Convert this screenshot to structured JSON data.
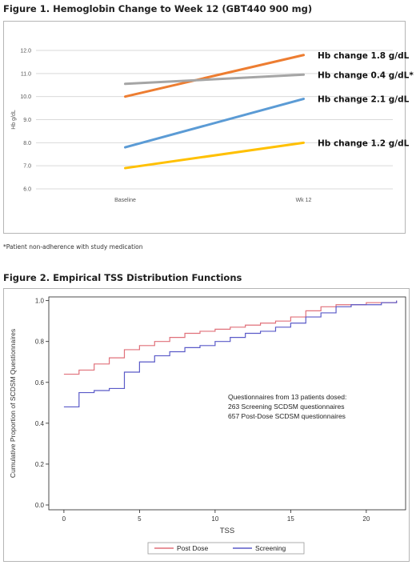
{
  "figure1": {
    "title": "Figure 1. Hemoglobin Change to Week 12 (GBT440 900 mg)",
    "footnote": "*Patient non-adherence with study medication"
  },
  "figure2": {
    "title": "Figure 2. Empirical TSS Distribution Functions",
    "annotation": [
      "Questionnaires from 13 patients dosed:",
      "263 Screening SCDSM questionnaires",
      "657 Post-Dose SCDSM questionnaires"
    ]
  },
  "chart_data": [
    {
      "type": "line",
      "categories": [
        "Baseline",
        "Wk 12"
      ],
      "ylabel": "Hb g/dL",
      "ylim": [
        6.0,
        12.0
      ],
      "yticks": [
        "6.0",
        "7.0",
        "8.0",
        "9.0",
        "10.0",
        "11.0",
        "12.0"
      ],
      "grid": true,
      "series": [
        {
          "name": "Hb change 1.8 g/dL",
          "values": [
            10.0,
            11.8
          ],
          "color": "#ed7d31"
        },
        {
          "name": "Hb change 0.4 g/dL*",
          "values": [
            10.55,
            10.95
          ],
          "color": "#a5a5a5"
        },
        {
          "name": "Hb change 2.1 g/dL",
          "values": [
            7.8,
            9.9
          ],
          "color": "#5b9bd5"
        },
        {
          "name": "Hb change 1.2 g/dL",
          "values": [
            6.9,
            8.0
          ],
          "color": "#ffc000"
        }
      ]
    },
    {
      "type": "line",
      "step": true,
      "xlabel": "TSS",
      "ylabel": "Cumulative Proportion of SCDSM Questionnaires",
      "xlim": [
        0,
        22
      ],
      "ylim": [
        0,
        1
      ],
      "xticks": [
        "0",
        "5",
        "10",
        "15",
        "20"
      ],
      "yticks": [
        "0.0",
        "0.2",
        "0.4",
        "0.6",
        "0.8",
        "1.0"
      ],
      "legend_position": "bottom",
      "series": [
        {
          "name": "Post Dose",
          "color": "#e0707a",
          "x": [
            0,
            1,
            2,
            3,
            4,
            5,
            6,
            7,
            8,
            9,
            10,
            11,
            12,
            13,
            14,
            15,
            16,
            17,
            18,
            19,
            20,
            21,
            22
          ],
          "values": [
            0.64,
            0.66,
            0.69,
            0.72,
            0.76,
            0.78,
            0.8,
            0.82,
            0.84,
            0.85,
            0.86,
            0.87,
            0.88,
            0.89,
            0.9,
            0.92,
            0.95,
            0.97,
            0.98,
            0.98,
            0.99,
            0.99,
            1.0
          ]
        },
        {
          "name": "Screening",
          "color": "#5a5ac8",
          "x": [
            0,
            1,
            2,
            3,
            4,
            5,
            6,
            7,
            8,
            9,
            10,
            11,
            12,
            13,
            14,
            15,
            16,
            17,
            18,
            19,
            20,
            21,
            22
          ],
          "values": [
            0.48,
            0.55,
            0.56,
            0.57,
            0.65,
            0.7,
            0.73,
            0.75,
            0.77,
            0.78,
            0.8,
            0.82,
            0.84,
            0.85,
            0.87,
            0.89,
            0.92,
            0.94,
            0.97,
            0.98,
            0.98,
            0.99,
            1.0
          ]
        }
      ]
    }
  ]
}
